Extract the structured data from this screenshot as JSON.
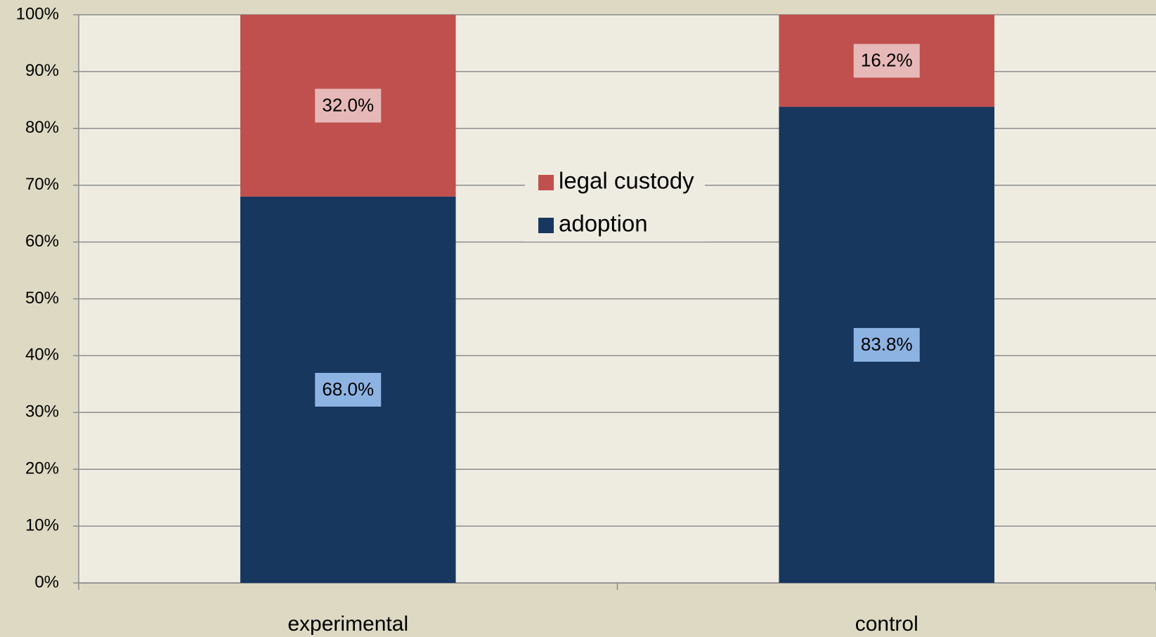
{
  "chart_data": {
    "type": "stacked_bar",
    "categories": [
      "experimental",
      "control"
    ],
    "series": [
      {
        "name": "adoption",
        "color": "#17375e",
        "label_bg": "#8db3e2",
        "values": [
          68.0,
          83.8
        ],
        "value_labels": [
          "68.0%",
          "83.8%"
        ]
      },
      {
        "name": "legal custody",
        "color": "#c0504d",
        "label_bg": "#e6b9b8",
        "values": [
          32.0,
          16.2
        ],
        "value_labels": [
          "32.0%",
          "16.2%"
        ]
      }
    ],
    "ylim": [
      0,
      100
    ],
    "yticks": [
      {
        "value": 0,
        "label": "0%"
      },
      {
        "value": 10,
        "label": "10%"
      },
      {
        "value": 20,
        "label": "20%"
      },
      {
        "value": 30,
        "label": "30%"
      },
      {
        "value": 40,
        "label": "40%"
      },
      {
        "value": 50,
        "label": "50%"
      },
      {
        "value": 60,
        "label": "60%"
      },
      {
        "value": 70,
        "label": "70%"
      },
      {
        "value": 80,
        "label": "80%"
      },
      {
        "value": 90,
        "label": "90%"
      },
      {
        "value": 100,
        "label": "100%"
      }
    ],
    "grid": true,
    "legend": "center"
  }
}
